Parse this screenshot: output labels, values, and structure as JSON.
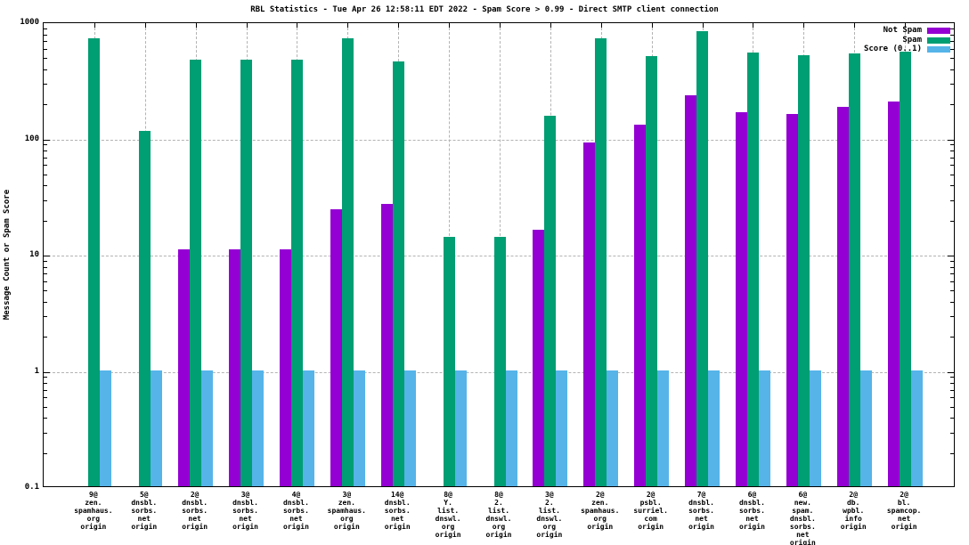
{
  "chart_data": {
    "type": "bar",
    "title": "RBL Statistics - Tue Apr 26 12:58:11 EDT 2022 - Spam Score > 0.99 - Direct SMTP client connection",
    "xlabel": "",
    "ylabel": "Message Count or Spam Score",
    "y_scale": "log",
    "ylim": [
      0.1,
      1000
    ],
    "grid": true,
    "legend_position": "top-right",
    "grid_color": "#b3b3b3",
    "y_ticks": [
      {
        "label": "1000",
        "value": 1000
      },
      {
        "label": "100",
        "value": 100
      },
      {
        "label": "10",
        "value": 10
      },
      {
        "label": "1",
        "value": 1
      },
      {
        "label": "0.1",
        "value": 0.1
      }
    ],
    "categories": [
      [
        "9@",
        "zen.",
        "spamhaus.",
        "org",
        "origin"
      ],
      [
        "5@",
        "dnsbl.",
        "sorbs.",
        "net",
        "origin"
      ],
      [
        "2@",
        "dnsbl.",
        "sorbs.",
        "net",
        "origin"
      ],
      [
        "3@",
        "dnsbl.",
        "sorbs.",
        "net",
        "origin"
      ],
      [
        "4@",
        "dnsbl.",
        "sorbs.",
        "net",
        "origin"
      ],
      [
        "3@",
        "zen.",
        "spamhaus.",
        "org",
        "origin"
      ],
      [
        "14@",
        "dnsbl.",
        "sorbs.",
        "net",
        "origin"
      ],
      [
        "8@",
        "Y.",
        "list.",
        "dnswl.",
        "org",
        "origin"
      ],
      [
        "8@",
        "2.",
        "list.",
        "dnswl.",
        "org",
        "origin"
      ],
      [
        "3@",
        "2.",
        "list.",
        "dnswl.",
        "org",
        "origin"
      ],
      [
        "2@",
        "zen.",
        "spamhaus.",
        "org",
        "origin"
      ],
      [
        "2@",
        "psbl.",
        "surriel.",
        "com",
        "origin"
      ],
      [
        "7@",
        "dnsbl.",
        "sorbs.",
        "net",
        "origin"
      ],
      [
        "6@",
        "dnsbl.",
        "sorbs.",
        "net",
        "origin"
      ],
      [
        "6@",
        "new.",
        "spam.",
        "dnsbl.",
        "sorbs.",
        "net",
        "origin"
      ],
      [
        "2@",
        "db.",
        "wpbl.",
        "info",
        "origin"
      ],
      [
        "2@",
        "bl.",
        "spamcop.",
        "net",
        "origin"
      ]
    ],
    "series": [
      {
        "name": "Not Spam",
        "color": "#9400D3",
        "values": [
          0,
          0,
          11,
          11,
          11,
          24,
          27,
          0,
          0,
          16,
          90,
          130,
          230,
          165,
          160,
          185,
          205
        ]
      },
      {
        "name": "Spam",
        "color": "#009E73",
        "values": [
          720,
          115,
          470,
          470,
          470,
          720,
          450,
          14,
          14,
          155,
          720,
          500,
          820,
          540,
          515,
          530,
          545
        ]
      },
      {
        "name": "Score (0..1)",
        "color": "#56B4E9",
        "values": [
          1,
          1,
          1,
          1,
          1,
          1,
          1,
          1,
          1,
          1,
          1,
          1,
          1,
          1,
          1,
          1,
          1
        ]
      }
    ]
  }
}
